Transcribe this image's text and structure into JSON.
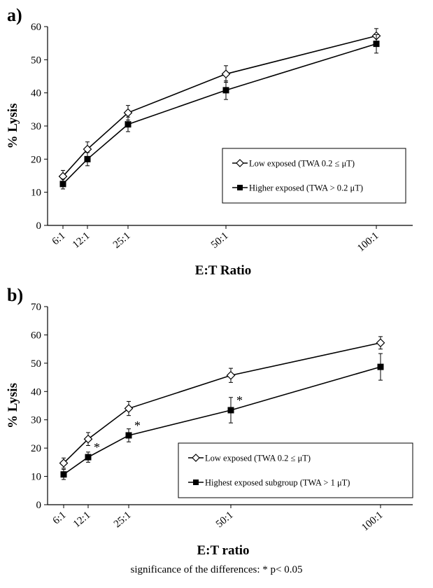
{
  "chart_data": [
    {
      "panel_label": "a)",
      "type": "line",
      "xlabel": "E:T Ratio",
      "ylabel": "% Lysis",
      "x": [
        "6:1",
        "12:1",
        "25:1",
        "50:1",
        "100:1"
      ],
      "ylim": [
        0,
        60
      ],
      "yticks": [
        0,
        10,
        20,
        30,
        40,
        50,
        60
      ],
      "grid": false,
      "legend_position": "right",
      "series": [
        {
          "name": "Low exposed (TWA  0.2 ≤ μT)",
          "marker": "open-diamond",
          "values": [
            14.8,
            23.0,
            34.0,
            45.7,
            57.2
          ],
          "errors": [
            1.8,
            2.2,
            2.2,
            2.5,
            2.2
          ]
        },
        {
          "name": "Higher exposed (TWA > 0.2 μT)",
          "marker": "filled-square",
          "values": [
            12.5,
            20.0,
            30.5,
            40.8,
            54.8
          ],
          "errors": [
            1.5,
            2.0,
            2.2,
            2.8,
            2.8
          ]
        }
      ]
    },
    {
      "panel_label": "b)",
      "type": "line",
      "xlabel": "E:T ratio",
      "ylabel": "% Lysis",
      "x": [
        "6:1",
        "12:1",
        "25:1",
        "50:1",
        "100:1"
      ],
      "ylim": [
        0,
        70
      ],
      "yticks": [
        0,
        10,
        20,
        30,
        40,
        50,
        60,
        70
      ],
      "grid": false,
      "legend_position": "bottom-right",
      "series": [
        {
          "name": "Low exposed (TWA  0.2 ≤ μT)",
          "marker": "open-diamond",
          "values": [
            14.7,
            23.2,
            34.0,
            45.7,
            57.2
          ],
          "errors": [
            1.8,
            2.3,
            2.5,
            2.5,
            2.2
          ]
        },
        {
          "name": "Highest exposed subgroup (TWA > 1 μT)",
          "marker": "filled-square",
          "values": [
            10.7,
            16.8,
            24.5,
            33.4,
            48.7
          ],
          "errors": [
            1.8,
            1.8,
            2.3,
            4.5,
            4.7
          ]
        }
      ],
      "significance_marks": [
        {
          "x": "12:1",
          "label": "*"
        },
        {
          "x": "25:1",
          "label": "*"
        },
        {
          "x": "50:1",
          "label": "*"
        }
      ]
    }
  ],
  "footnote": "significance of the differences: * p< 0.05"
}
